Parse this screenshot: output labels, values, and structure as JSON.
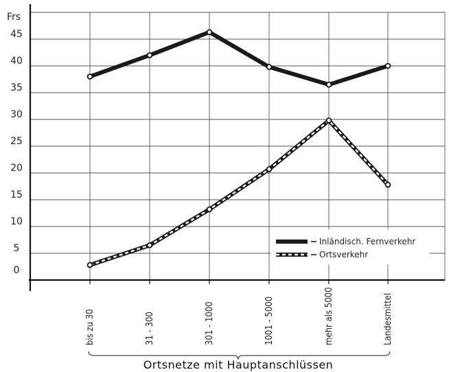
{
  "chart_data": {
    "type": "line",
    "title": "",
    "y_unit_label": "Frs",
    "xlabel": "Ortsnetze mit Hauptanschlüssen",
    "ylabel": "",
    "ylim": [
      0,
      50
    ],
    "yticks": [
      0,
      5,
      10,
      15,
      20,
      25,
      30,
      35,
      40,
      45
    ],
    "grid": true,
    "legend_position": "bottom-right",
    "categories": [
      "bis zu 30",
      "31 - 300",
      "301 - 1000",
      "1001 - 5000",
      "mehr als 5000",
      "Landesmittel"
    ],
    "series": [
      {
        "name": "Inländisch. Fernverkehr",
        "style": "solid",
        "color": "#1a1a1a",
        "values": [
          38,
          42,
          46.3,
          39.8,
          36.5,
          40
        ]
      },
      {
        "name": "Ortsverkehr",
        "style": "dashed-white",
        "color": "#1a1a1a",
        "values": [
          2.8,
          6.5,
          13.2,
          20.7,
          29.8,
          17.8
        ]
      }
    ]
  }
}
